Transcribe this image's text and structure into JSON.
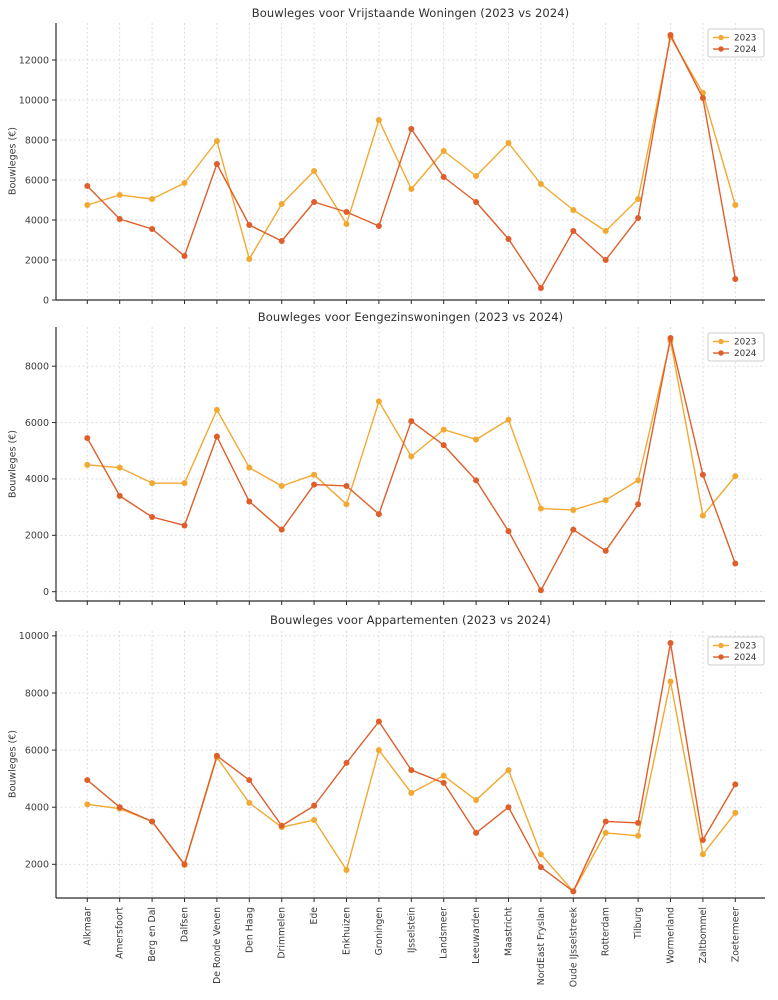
{
  "figure": {
    "background": "#ffffff",
    "legend_entries": [
      "2023",
      "2024"
    ]
  },
  "colors": {
    "series_2023": "#F1A933",
    "series_2024": "#DE5F2C",
    "grid": "#d9d9d9",
    "spine": "#2b2b2b",
    "tick_text": "#3c3c3c",
    "title_text": "#2f2f2f",
    "legend_border": "#cccccc"
  },
  "categories": [
    "Alkmaar",
    "Amersfoort",
    "Berg en Dal",
    "Dalfsen",
    "De Ronde Venen",
    "Den Haag",
    "Drimmelen",
    "Ede",
    "Enkhuizen",
    "Groningen",
    "IJsselstein",
    "Landsmeer",
    "Leeuwarden",
    "Maastricht",
    "NordEast Fryslan",
    "Oude IJsselstreek",
    "Rotterdam",
    "Tilburg",
    "Wormerland",
    "Zaltbommel",
    "Zoetermeer"
  ],
  "chart_data": [
    {
      "type": "line",
      "title": "Bouwleges voor Vrijstaande Woningen (2023 vs 2024)",
      "ylabel": "Bouwleges (€)",
      "grid": true,
      "legend_position": "upper right",
      "yticks": [
        0,
        2000,
        4000,
        6000,
        8000,
        10000,
        12000
      ],
      "ylim": [
        0,
        13850
      ],
      "categories": [
        "Alkmaar",
        "Amersfoort",
        "Berg en Dal",
        "Dalfsen",
        "De Ronde Venen",
        "Den Haag",
        "Drimmelen",
        "Ede",
        "Enkhuizen",
        "Groningen",
        "IJsselstein",
        "Landsmeer",
        "Leeuwarden",
        "Maastricht",
        "NordEast Fryslan",
        "Oude IJsselstreek",
        "Rotterdam",
        "Tilburg",
        "Wormerland",
        "Zaltbommel",
        "Zoetermeer"
      ],
      "series": [
        {
          "name": "2023",
          "color": "#F1A933",
          "values": [
            4750,
            5250,
            5050,
            5850,
            7950,
            2050,
            4800,
            6450,
            3800,
            9000,
            5550,
            7450,
            6200,
            7850,
            5800,
            4500,
            3450,
            5050,
            13150,
            10350,
            4750
          ]
        },
        {
          "name": "2024",
          "color": "#DE5F2C",
          "values": [
            5700,
            4050,
            3550,
            2200,
            6800,
            3750,
            2950,
            4900,
            4400,
            3700,
            8550,
            6150,
            4900,
            3050,
            600,
            3450,
            2000,
            4100,
            13250,
            10100,
            1050
          ]
        }
      ]
    },
    {
      "type": "line",
      "title": "Bouwleges voor Eengezinswoningen (2023 vs 2024)",
      "ylabel": "Bouwleges (€)",
      "grid": true,
      "legend_position": "upper right",
      "yticks": [
        0,
        2000,
        4000,
        6000,
        8000
      ],
      "ylim": [
        -330,
        9390
      ],
      "categories": [
        "Alkmaar",
        "Amersfoort",
        "Berg en Dal",
        "Dalfsen",
        "De Ronde Venen",
        "Den Haag",
        "Drimmelen",
        "Ede",
        "Enkhuizen",
        "Groningen",
        "IJsselstein",
        "Landsmeer",
        "Leeuwarden",
        "Maastricht",
        "NordEast Fryslan",
        "Oude IJsselstreek",
        "Rotterdam",
        "Tilburg",
        "Wormerland",
        "Zaltbommel",
        "Zoetermeer"
      ],
      "series": [
        {
          "name": "2023",
          "color": "#F1A933",
          "values": [
            4500,
            4400,
            3850,
            3850,
            6450,
            4400,
            3750,
            4150,
            3100,
            6750,
            4800,
            5750,
            5400,
            6100,
            2950,
            2900,
            3250,
            3950,
            8900,
            2700,
            4100
          ]
        },
        {
          "name": "2024",
          "color": "#DE5F2C",
          "values": [
            5450,
            3400,
            2650,
            2350,
            5500,
            3200,
            2200,
            3800,
            3750,
            2750,
            6050,
            5200,
            3950,
            2150,
            50,
            2200,
            1450,
            3100,
            9000,
            4150,
            1000
          ]
        }
      ]
    },
    {
      "type": "line",
      "title": "Bouwleges voor Appartementen (2023 vs 2024)",
      "ylabel": "Bouwleges (€)",
      "grid": true,
      "legend_position": "upper right",
      "yticks": [
        2000,
        4000,
        6000,
        8000,
        10000
      ],
      "ylim": [
        820,
        10170
      ],
      "categories": [
        "Alkmaar",
        "Amersfoort",
        "Berg en Dal",
        "Dalfsen",
        "De Ronde Venen",
        "Den Haag",
        "Drimmelen",
        "Ede",
        "Enkhuizen",
        "Groningen",
        "IJsselstein",
        "Landsmeer",
        "Leeuwarden",
        "Maastricht",
        "NordEast Fryslan",
        "Oude IJsselstreek",
        "Rotterdam",
        "Tilburg",
        "Wormerland",
        "Zaltbommel",
        "Zoetermeer"
      ],
      "series": [
        {
          "name": "2023",
          "color": "#F1A933",
          "values": [
            4100,
            3950,
            3500,
            1975,
            5750,
            4150,
            3300,
            3550,
            1800,
            6000,
            4500,
            5100,
            4250,
            5300,
            2350,
            1050,
            3100,
            3000,
            8400,
            2350,
            3800
          ]
        },
        {
          "name": "2024",
          "color": "#DE5F2C",
          "values": [
            4950,
            4000,
            3500,
            2000,
            5800,
            4950,
            3350,
            4050,
            5550,
            7000,
            5300,
            4850,
            3100,
            4000,
            1900,
            1050,
            3500,
            3450,
            9750,
            2850,
            4800
          ]
        }
      ]
    }
  ]
}
